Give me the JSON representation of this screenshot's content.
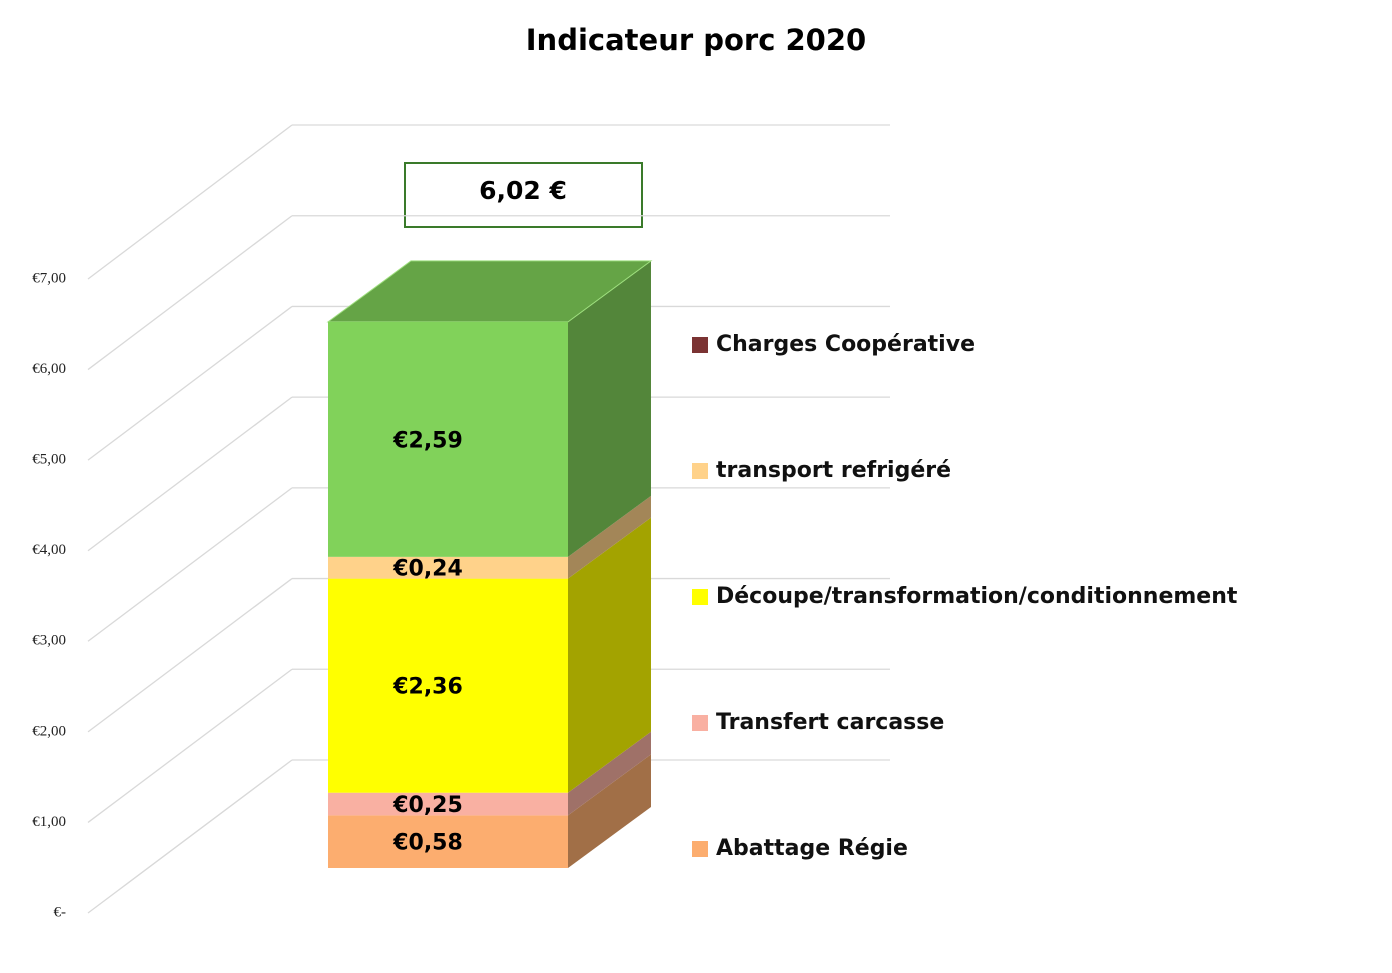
{
  "chart_data": {
    "type": "bar3d_stacked",
    "title": "Indicateur porc 2020",
    "categories": [
      null
    ],
    "series": [
      {
        "name": "Abattage Régie",
        "color": "#fcad6f",
        "values": [
          0.58
        ],
        "value_labels": [
          "€0,58"
        ]
      },
      {
        "name": "Transfert carcasse",
        "color": "#f9b0a2",
        "values": [
          0.25
        ],
        "value_labels": [
          "€0,25"
        ]
      },
      {
        "name": "Découpe/transformation/conditionnement",
        "color": "#ffff00",
        "values": [
          2.36
        ],
        "value_labels": [
          "€2,36"
        ]
      },
      {
        "name": "transport refrigéré",
        "color": "#ffd28a",
        "values": [
          0.24
        ],
        "value_labels": [
          "€0,24"
        ]
      },
      {
        "name": "Charges Coopérative",
        "color": "#81d25a",
        "legend_color": "#7b3333",
        "values": [
          2.59
        ],
        "value_labels": [
          "€2,59"
        ]
      }
    ],
    "annotations": [
      "6,02 €"
    ],
    "ylim": [
      0,
      7
    ],
    "yticks": [
      {
        "value": 0,
        "label": "€-"
      },
      {
        "value": 1,
        "label": "€1,00"
      },
      {
        "value": 2,
        "label": "€2,00"
      },
      {
        "value": 3,
        "label": "€3,00"
      },
      {
        "value": 4,
        "label": "€4,00"
      },
      {
        "value": 5,
        "label": "€5,00"
      },
      {
        "value": 6,
        "label": "€6,00"
      },
      {
        "value": 7,
        "label": "€7,00"
      }
    ],
    "grid": true,
    "legend": "right"
  }
}
